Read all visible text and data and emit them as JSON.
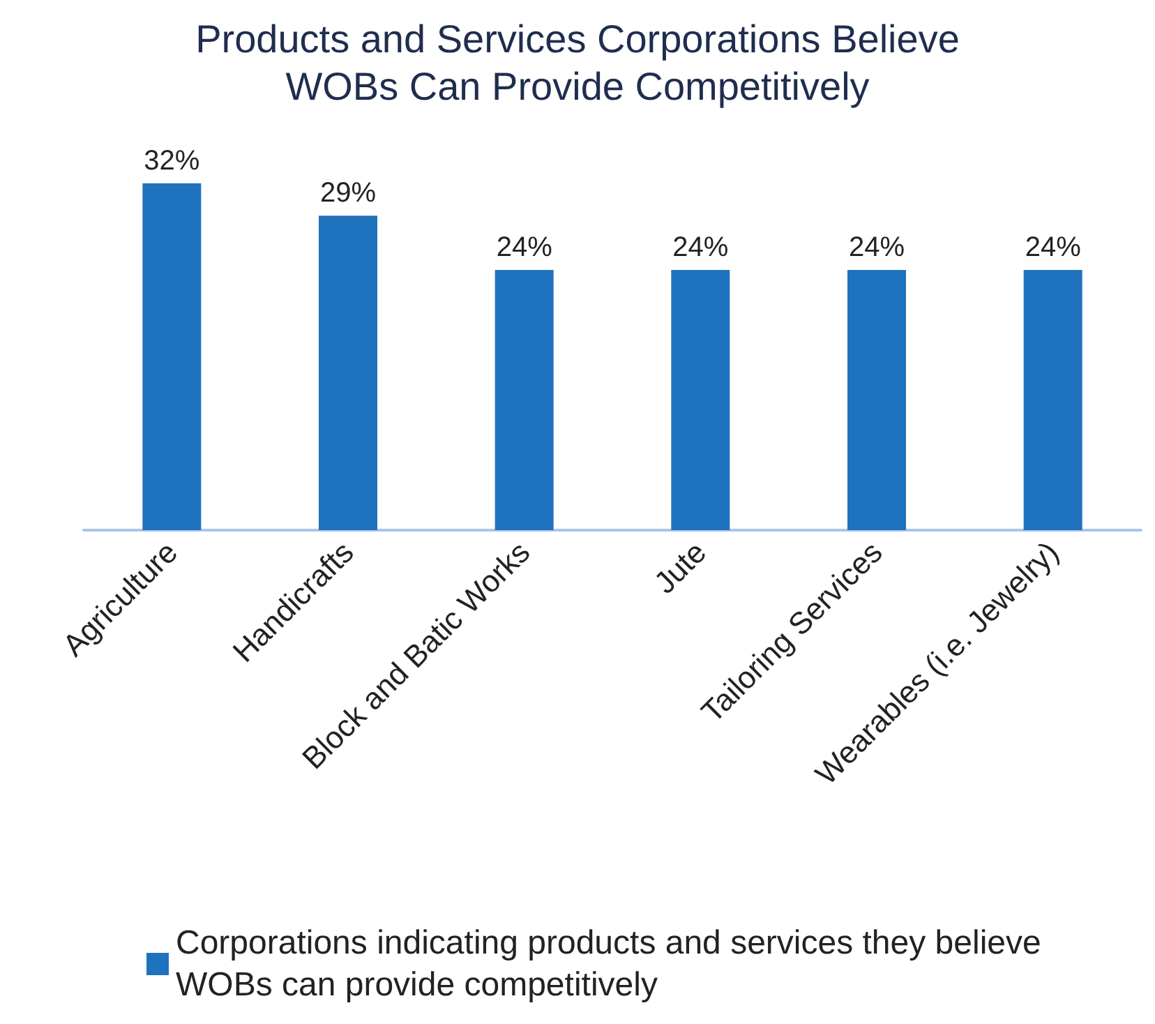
{
  "chart_data": {
    "type": "bar",
    "title": "Products and Services Corporations Believe\nWOBs Can Provide Competitively",
    "categories": [
      "Agriculture",
      "Handicrafts",
      "Block and Batic Works",
      "Jute",
      "Tailoring Services",
      "Wearables (i.e. Jewelry)"
    ],
    "series": [
      {
        "name": "Corporations indicating products and services they believe WOBs can provide competitively",
        "color": "#1f72be",
        "values": [
          32,
          29,
          24,
          24,
          24,
          24
        ],
        "value_labels": [
          "32%",
          "29%",
          "24%",
          "24%",
          "24%",
          "24%"
        ]
      }
    ],
    "legend": "bottom",
    "grid": false
  }
}
